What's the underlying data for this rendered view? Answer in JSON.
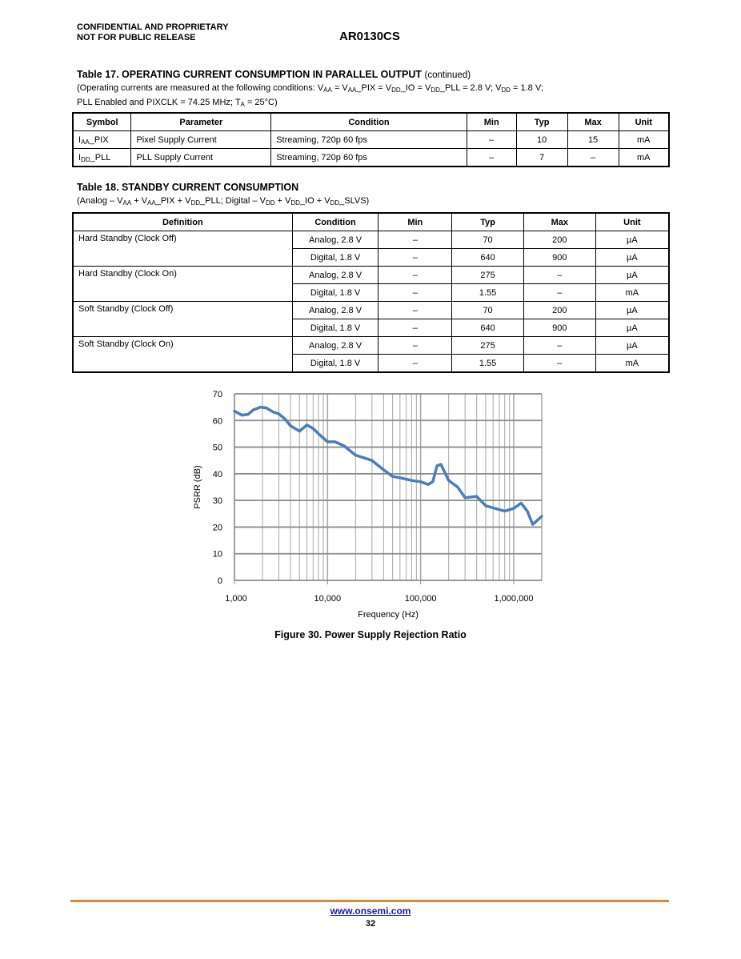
{
  "header": {
    "left_line1": "CONFIDENTIAL AND PROPRIETARY",
    "left_line2": "NOT FOR PUBLIC RELEASE",
    "doc_title": "AR0130CS"
  },
  "table17": {
    "title": "Table 17. OPERATING CURRENT CONSUMPTION IN PARALLEL OUTPUT",
    "title_suffix": "(continued)",
    "note_line1": [
      {
        "t": "(Operating currents are measured at the following conditions: V"
      },
      {
        "s": "AA"
      },
      {
        "t": " = V"
      },
      {
        "s": "AA"
      },
      {
        "t": "_PIX = V"
      },
      {
        "s": "DD"
      },
      {
        "t": "_IO = V"
      },
      {
        "s": "DD"
      },
      {
        "t": "_PLL = 2.8 V; V"
      },
      {
        "s": "DD"
      },
      {
        "t": " = 1.8 V;"
      }
    ],
    "note_line2": [
      {
        "t": "PLL Enabled and PIXCLK = 74.25 MHz; T"
      },
      {
        "s": "A"
      },
      {
        "t": " = 25°C)"
      }
    ],
    "columns": [
      "Symbol",
      "Parameter",
      "Condition",
      "Min",
      "Typ",
      "Max",
      "Unit"
    ],
    "rows": [
      {
        "symbol": [
          {
            "t": "I"
          },
          {
            "s": "AA"
          },
          {
            "t": "_PIX"
          }
        ],
        "parameter": "Pixel Supply Current",
        "condition": "Streaming, 720p 60 fps",
        "min": "–",
        "typ": "10",
        "max": "15",
        "unit": "mA"
      },
      {
        "symbol": [
          {
            "t": "I"
          },
          {
            "s": "DD"
          },
          {
            "t": "_PLL"
          }
        ],
        "parameter": "PLL Supply Current",
        "condition": "Streaming, 720p 60 fps",
        "min": "–",
        "typ": "7",
        "max": "–",
        "unit": "mA"
      }
    ]
  },
  "table18": {
    "title": "Table 18. STANDBY CURRENT CONSUMPTION",
    "note": [
      {
        "t": "(Analog – V"
      },
      {
        "s": "AA"
      },
      {
        "t": " + V"
      },
      {
        "s": "AA"
      },
      {
        "t": "_PIX + V"
      },
      {
        "s": "DD"
      },
      {
        "t": "_PLL; Digital – V"
      },
      {
        "s": "DD"
      },
      {
        "t": " + V"
      },
      {
        "s": "DD"
      },
      {
        "t": "_IO + V"
      },
      {
        "s": "DD"
      },
      {
        "t": "_SLVS)"
      }
    ],
    "columns": [
      "Definition",
      "Condition",
      "Min",
      "Typ",
      "Max",
      "Unit"
    ],
    "groups": [
      {
        "definition": "Hard Standby (Clock Off)",
        "rows": [
          {
            "condition": "Analog, 2.8 V",
            "min": "–",
            "typ": "70",
            "max": "200",
            "unit": "µA"
          },
          {
            "condition": "Digital, 1.8 V",
            "min": "–",
            "typ": "640",
            "max": "900",
            "unit": "µA"
          }
        ]
      },
      {
        "definition": "Hard Standby (Clock On)",
        "rows": [
          {
            "condition": "Analog, 2.8 V",
            "min": "–",
            "typ": "275",
            "max": "–",
            "unit": "µA"
          },
          {
            "condition": "Digital, 1.8 V",
            "min": "–",
            "typ": "1.55",
            "max": "–",
            "unit": "mA"
          }
        ]
      },
      {
        "definition": "Soft Standby (Clock Off)",
        "rows": [
          {
            "condition": "Analog, 2.8 V",
            "min": "–",
            "typ": "70",
            "max": "200",
            "unit": "µA"
          },
          {
            "condition": "Digital, 1.8 V",
            "min": "–",
            "typ": "640",
            "max": "900",
            "unit": "µA"
          }
        ]
      },
      {
        "definition": "Soft Standby (Clock On)",
        "rows": [
          {
            "condition": "Analog, 2.8 V",
            "min": "–",
            "typ": "275",
            "max": "–",
            "unit": "µA"
          },
          {
            "condition": "Digital, 1.8 V",
            "min": "–",
            "typ": "1.55",
            "max": "–",
            "unit": "mA"
          }
        ]
      }
    ]
  },
  "chart_data": {
    "type": "line",
    "title": "Figure 30. Power Supply Rejection Ratio",
    "xlabel": "Frequency (Hz)",
    "ylabel": "PSRR (dB)",
    "xscale": "log",
    "xlim": [
      1000,
      2000000
    ],
    "ylim": [
      0,
      70
    ],
    "grid": true,
    "xticks": [
      1000,
      10000,
      100000,
      1000000
    ],
    "xtick_labels": [
      "1,000",
      "10,000",
      "100,000",
      "1,000,000"
    ],
    "yticks": [
      0,
      10,
      20,
      30,
      40,
      50,
      60,
      70
    ],
    "ytick_labels": [
      "0",
      "10",
      "20",
      "30",
      "40",
      "50",
      "60",
      "70"
    ],
    "line_color": "#4a7ebb",
    "x": [
      1000,
      1200,
      1400,
      1600,
      1900,
      2200,
      2600,
      3000,
      3500,
      4000,
      5000,
      6000,
      7000,
      8000,
      10000,
      12000,
      15000,
      20000,
      30000,
      40000,
      50000,
      60000,
      80000,
      100000,
      120000,
      135000,
      150000,
      165000,
      200000,
      250000,
      300000,
      400000,
      500000,
      800000,
      1000000,
      1200000,
      1400000,
      1600000,
      2000000
    ],
    "y": [
      63.5,
      62,
      62.3,
      64,
      65,
      64.7,
      63.2,
      62.5,
      60.5,
      58,
      56,
      58.3,
      57,
      55,
      52,
      52,
      50.5,
      47,
      45,
      41.5,
      39,
      38.5,
      37.5,
      37,
      36,
      37,
      43,
      43.5,
      37.5,
      35,
      31,
      31.5,
      28,
      26,
      27,
      29,
      26,
      21,
      24
    ]
  },
  "footer": {
    "link": "www.onsemi.com",
    "page": "32",
    "rule_color": "#e0883a"
  }
}
